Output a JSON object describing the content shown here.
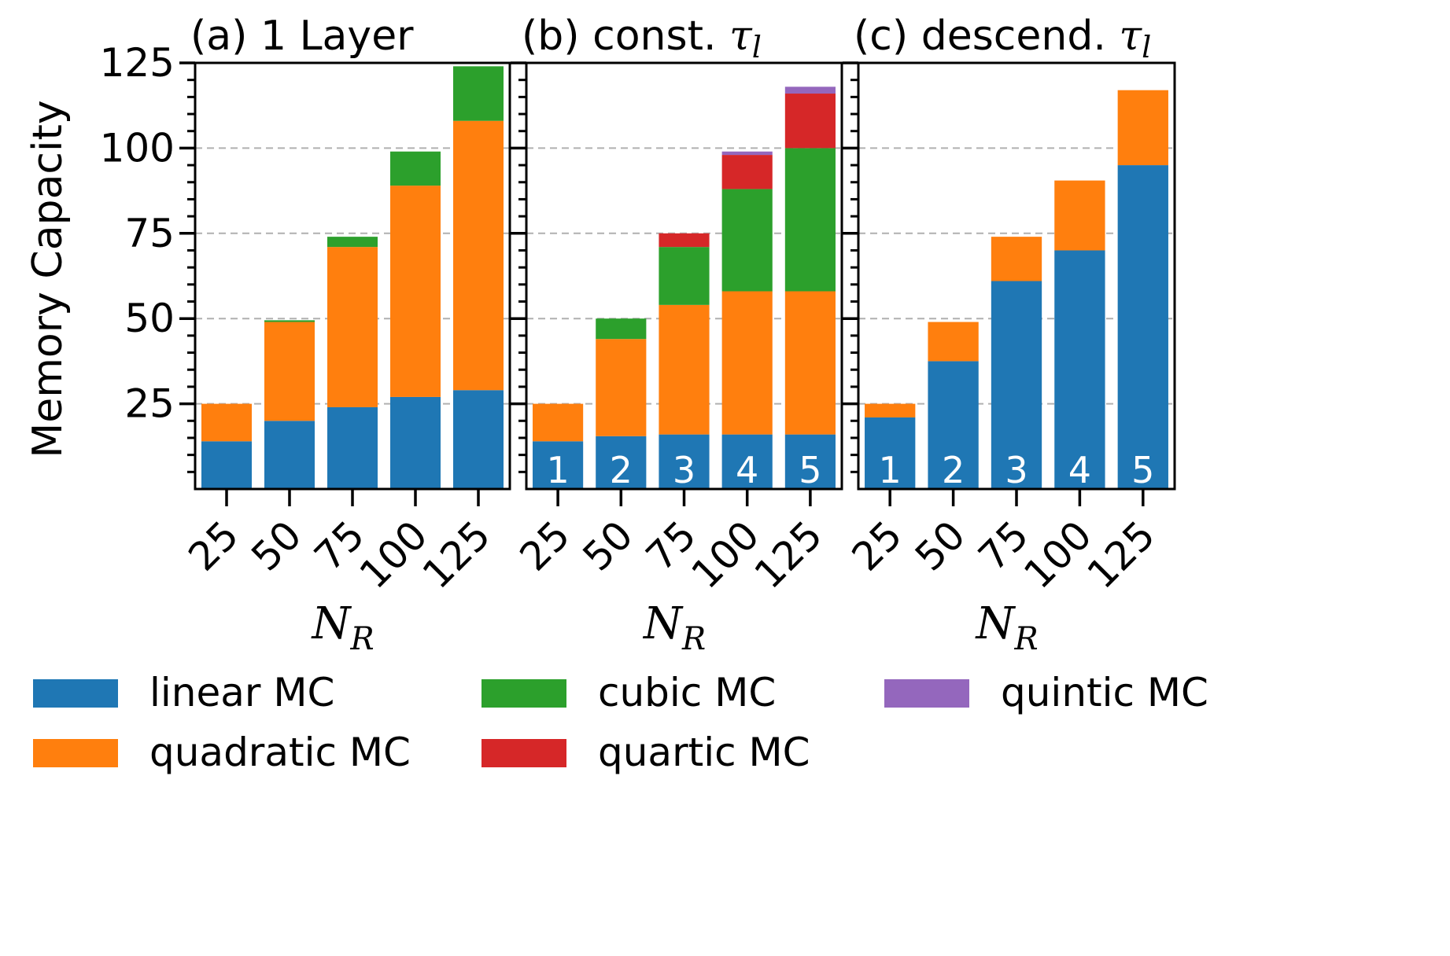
{
  "colors": {
    "linear": "#1f77b4",
    "quadratic": "#ff7f0e",
    "cubic": "#2ca02c",
    "quartic": "#d62728",
    "quintic": "#9467bd",
    "grid": "#b0b0b0"
  },
  "chart_data": [
    {
      "type": "bar",
      "stacked": true,
      "title_prefix": "(a) 1 Layer",
      "title_math": "",
      "categories": [
        "25",
        "50",
        "75",
        "100",
        "125"
      ],
      "bar_labels": [],
      "ylabel": "Memory Capacity",
      "xlabel_main": "N",
      "xlabel_sub": "R",
      "ylim": [
        0,
        125
      ],
      "yticks": [
        25,
        50,
        75,
        100,
        125
      ],
      "grid": "horizontal dashed",
      "series": [
        {
          "name": "linear MC",
          "color_key": "linear",
          "values": [
            14,
            20,
            24,
            27,
            29
          ]
        },
        {
          "name": "quadratic MC",
          "color_key": "quadratic",
          "values": [
            11,
            29,
            47,
            62,
            79
          ]
        },
        {
          "name": "cubic MC",
          "color_key": "cubic",
          "values": [
            0,
            0.5,
            3,
            10,
            16
          ]
        },
        {
          "name": "quartic MC",
          "color_key": "quartic",
          "values": [
            0,
            0,
            0,
            0,
            0
          ]
        },
        {
          "name": "quintic MC",
          "color_key": "quintic",
          "values": [
            0,
            0,
            0,
            0,
            0
          ]
        }
      ]
    },
    {
      "type": "bar",
      "stacked": true,
      "title_prefix": "(b) const. ",
      "title_math": "τ",
      "title_math_sub": "l",
      "categories": [
        "25",
        "50",
        "75",
        "100",
        "125"
      ],
      "bar_labels": [
        "1",
        "2",
        "3",
        "4",
        "5"
      ],
      "xlabel_main": "N",
      "xlabel_sub": "R",
      "ylim": [
        0,
        125
      ],
      "yticks": [
        25,
        50,
        75,
        100,
        125
      ],
      "grid": "horizontal dashed",
      "series": [
        {
          "name": "linear MC",
          "color_key": "linear",
          "values": [
            14,
            15.5,
            16,
            16,
            16
          ]
        },
        {
          "name": "quadratic MC",
          "color_key": "quadratic",
          "values": [
            11,
            28.5,
            38,
            42,
            42
          ]
        },
        {
          "name": "cubic MC",
          "color_key": "cubic",
          "values": [
            0,
            6,
            17,
            30,
            42
          ]
        },
        {
          "name": "quartic MC",
          "color_key": "quartic",
          "values": [
            0,
            0,
            4,
            10,
            16
          ]
        },
        {
          "name": "quintic MC",
          "color_key": "quintic",
          "values": [
            0,
            0,
            0,
            1,
            2
          ]
        }
      ]
    },
    {
      "type": "bar",
      "stacked": true,
      "title_prefix": "(c) descend. ",
      "title_math": "τ",
      "title_math_sub": "l",
      "categories": [
        "25",
        "50",
        "75",
        "100",
        "125"
      ],
      "bar_labels": [
        "1",
        "2",
        "3",
        "4",
        "5"
      ],
      "xlabel_main": "N",
      "xlabel_sub": "R",
      "ylim": [
        0,
        125
      ],
      "yticks": [
        25,
        50,
        75,
        100,
        125
      ],
      "grid": "horizontal dashed",
      "series": [
        {
          "name": "linear MC",
          "color_key": "linear",
          "values": [
            21,
            37.5,
            61,
            70,
            95
          ]
        },
        {
          "name": "quadratic MC",
          "color_key": "quadratic",
          "values": [
            4,
            11.5,
            13,
            20.5,
            22
          ]
        },
        {
          "name": "cubic MC",
          "color_key": "cubic",
          "values": [
            0,
            0,
            0,
            0,
            0
          ]
        },
        {
          "name": "quartic MC",
          "color_key": "quartic",
          "values": [
            0,
            0,
            0,
            0,
            0
          ]
        },
        {
          "name": "quintic MC",
          "color_key": "quintic",
          "values": [
            0,
            0,
            0,
            0,
            0
          ]
        }
      ]
    }
  ],
  "legend": {
    "placement": "bottom",
    "items": [
      {
        "label": "linear MC",
        "color_key": "linear"
      },
      {
        "label": "quadratic MC",
        "color_key": "quadratic"
      },
      {
        "label": "cubic MC",
        "color_key": "cubic"
      },
      {
        "label": "quartic MC",
        "color_key": "quartic"
      },
      {
        "label": "quintic MC",
        "color_key": "quintic"
      }
    ]
  }
}
